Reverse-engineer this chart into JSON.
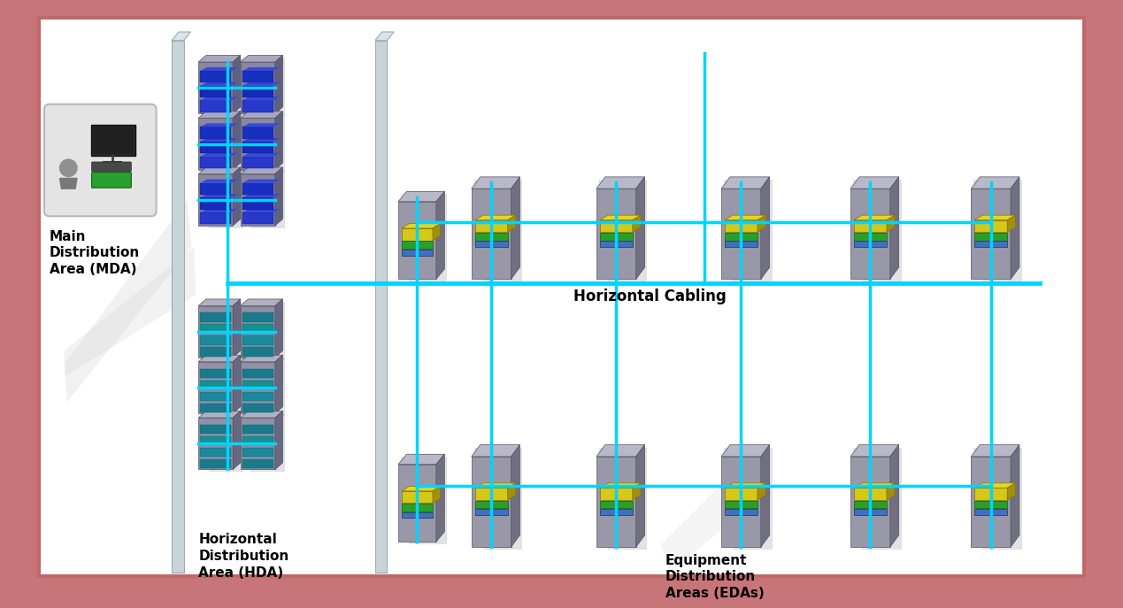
{
  "bg_outer": "#c8757a",
  "bg_inner": "#ffffff",
  "border_color": "#c06868",
  "cable_color": "#00d4ff",
  "cable_lw": 2.5,
  "wall_fc": "#c8d4d8",
  "wall_tc": "#d8e4e8",
  "wall_ec": "#a0aab0",
  "rack_fc": "#9898a8",
  "rack_tc": "#b8b8c8",
  "rack_sc": "#707080",
  "rack_ec": "#505060",
  "mda_rack_fc": "#8888a0",
  "mda_rack_tc": "#a8a8c0",
  "mda_rack_sc": "#606080",
  "hda_rack_fc": "#9090a8",
  "hda_rack_tc": "#b0b0c0",
  "hda_rack_sc": "#686880",
  "blue_server_colors": [
    "#2838c8",
    "#1828b8",
    "#1830c0",
    "#2840c8"
  ],
  "cyan_server_colors": [
    "#1a7a8a",
    "#1a8a9a",
    "#159090",
    "#1a7a8a",
    "#128888"
  ],
  "patch_yellow": "#d4c818",
  "patch_yellow_top": "#e0d820",
  "patch_yellow_side": "#a09010",
  "patch_yellow_ec": "#907000",
  "patch_green": "#28a028",
  "patch_green_ec": "#106010",
  "patch_blue": "#4070c0",
  "patch_blue_ec": "#203060",
  "shadow_fc": "#b8b8b8",
  "ws_bg": "#e4e4e4",
  "ws_ec": "#b8b8b8",
  "person_color": "#909090",
  "labels": {
    "mda": "Main\nDistribution\nArea (MDA)",
    "hda": "Horizontal\nDistribution\nArea (HDA)",
    "eda": "Equipment\nDistribution\nAreas (EDAs)",
    "hcabling": "Horizontal Cabling"
  },
  "label_fontsize": 11,
  "hcabling_fontsize": 12
}
